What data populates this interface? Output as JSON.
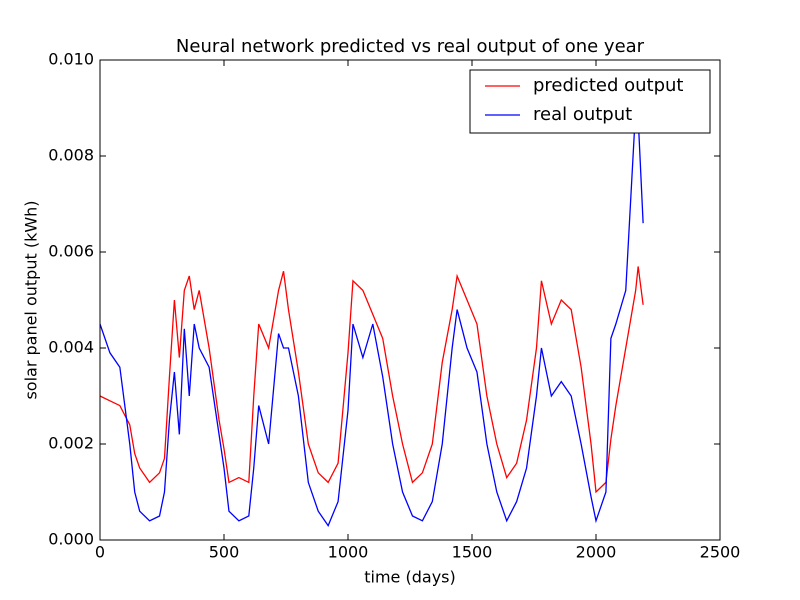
{
  "chart_data": {
    "type": "line",
    "title": "Neural network predicted vs real output of one year",
    "xlabel": "time (days)",
    "ylabel": "solar panel output (kWh)",
    "x": [
      0,
      40,
      80,
      120,
      140,
      160,
      200,
      240,
      260,
      280,
      300,
      320,
      340,
      360,
      380,
      400,
      440,
      480,
      500,
      520,
      560,
      600,
      620,
      640,
      680,
      720,
      740,
      760,
      800,
      840,
      880,
      920,
      960,
      1000,
      1020,
      1060,
      1100,
      1140,
      1180,
      1220,
      1260,
      1300,
      1340,
      1380,
      1420,
      1440,
      1480,
      1520,
      1560,
      1600,
      1640,
      1680,
      1720,
      1760,
      1780,
      1820,
      1860,
      1900,
      1940,
      1980,
      2000,
      2040,
      2060,
      2080,
      2120,
      2160,
      2170,
      2190
    ],
    "series": [
      {
        "name": "predicted output",
        "color": "#ff0000",
        "values": [
          0.003,
          0.0029,
          0.0028,
          0.0024,
          0.0018,
          0.0015,
          0.0012,
          0.0014,
          0.0017,
          0.0034,
          0.005,
          0.0038,
          0.0052,
          0.0055,
          0.0048,
          0.0052,
          0.004,
          0.0025,
          0.0019,
          0.0012,
          0.0013,
          0.0012,
          0.003,
          0.0045,
          0.004,
          0.0052,
          0.0056,
          0.0048,
          0.0035,
          0.002,
          0.0014,
          0.0012,
          0.0016,
          0.0039,
          0.0054,
          0.0052,
          0.0047,
          0.0042,
          0.003,
          0.002,
          0.0012,
          0.0014,
          0.002,
          0.0037,
          0.0048,
          0.0055,
          0.005,
          0.0045,
          0.003,
          0.002,
          0.0013,
          0.0016,
          0.0025,
          0.004,
          0.0054,
          0.0045,
          0.005,
          0.0048,
          0.0036,
          0.002,
          0.001,
          0.0012,
          0.0021,
          0.0028,
          0.004,
          0.0052,
          0.0057,
          0.0049
        ]
      },
      {
        "name": "real output",
        "color": "#0000ff",
        "values": [
          0.0045,
          0.0039,
          0.0036,
          0.002,
          0.001,
          0.0006,
          0.0004,
          0.0005,
          0.001,
          0.0025,
          0.0035,
          0.0022,
          0.0044,
          0.003,
          0.0045,
          0.004,
          0.0036,
          0.0022,
          0.0015,
          0.0006,
          0.0004,
          0.0005,
          0.0015,
          0.0028,
          0.002,
          0.0043,
          0.004,
          0.004,
          0.003,
          0.0012,
          0.0006,
          0.0003,
          0.0008,
          0.0027,
          0.0045,
          0.0038,
          0.0045,
          0.0034,
          0.002,
          0.001,
          0.0005,
          0.0004,
          0.0008,
          0.002,
          0.004,
          0.0048,
          0.004,
          0.0035,
          0.002,
          0.001,
          0.0004,
          0.0008,
          0.0015,
          0.003,
          0.004,
          0.003,
          0.0033,
          0.003,
          0.002,
          0.0009,
          0.0004,
          0.001,
          0.0042,
          0.0045,
          0.0052,
          0.009,
          0.0088,
          0.0066
        ]
      }
    ],
    "xlim": [
      0,
      2500
    ],
    "xticks": [
      0,
      500,
      1000,
      1500,
      2000,
      2500
    ],
    "ylim": [
      0,
      0.01
    ],
    "yticks": [
      {
        "value": 0,
        "label": "0.000"
      },
      {
        "value": 0.002,
        "label": "0.002"
      },
      {
        "value": 0.004,
        "label": "0.004"
      },
      {
        "value": 0.006,
        "label": "0.006"
      },
      {
        "value": 0.008,
        "label": "0.008"
      },
      {
        "value": 0.01,
        "label": "0.010"
      }
    ],
    "legend": "upper right",
    "grid": false
  }
}
